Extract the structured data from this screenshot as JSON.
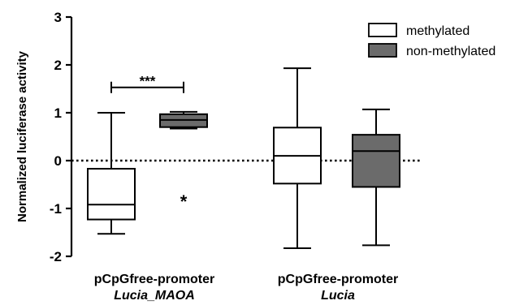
{
  "chart_data": {
    "type": "box",
    "ylabel": "Normalized luciferase activity",
    "ylim": [
      -2,
      3
    ],
    "yticks": [
      -2,
      -1,
      0,
      1,
      2,
      3
    ],
    "ytick_labels": [
      "-2",
      "-1",
      "0",
      "1",
      "2",
      "3"
    ],
    "reference_line": 0,
    "legend_position": "top-right",
    "categories": [
      {
        "line1": "pCpGfree-promoter",
        "line2": "Lucia_MAOA"
      },
      {
        "line1": "pCpGfree-promoter",
        "line2": "Lucia"
      }
    ],
    "series": [
      {
        "name": "methylated",
        "fill": "#ffffff",
        "boxes": [
          {
            "category": 0,
            "whisker_low": -1.53,
            "q1": -1.23,
            "median": -0.92,
            "q3": -0.17,
            "whisker_high": 1.0,
            "outliers": []
          },
          {
            "category": 1,
            "whisker_low": -1.83,
            "q1": -0.48,
            "median": 0.1,
            "q3": 0.69,
            "whisker_high": 1.93,
            "outliers": []
          }
        ]
      },
      {
        "name": "non-methylated",
        "fill": "#6b6b6b",
        "boxes": [
          {
            "category": 0,
            "whisker_low": 0.67,
            "q1": 0.7,
            "median": 0.85,
            "q3": 0.97,
            "whisker_high": 1.02,
            "outliers": [
              -0.8
            ]
          },
          {
            "category": 1,
            "whisker_low": -1.77,
            "q1": -0.55,
            "median": 0.2,
            "q3": 0.54,
            "whisker_high": 1.07,
            "outliers": []
          }
        ]
      }
    ],
    "annotations": [
      {
        "text": "***",
        "category": 0,
        "y": 1.53
      }
    ]
  }
}
